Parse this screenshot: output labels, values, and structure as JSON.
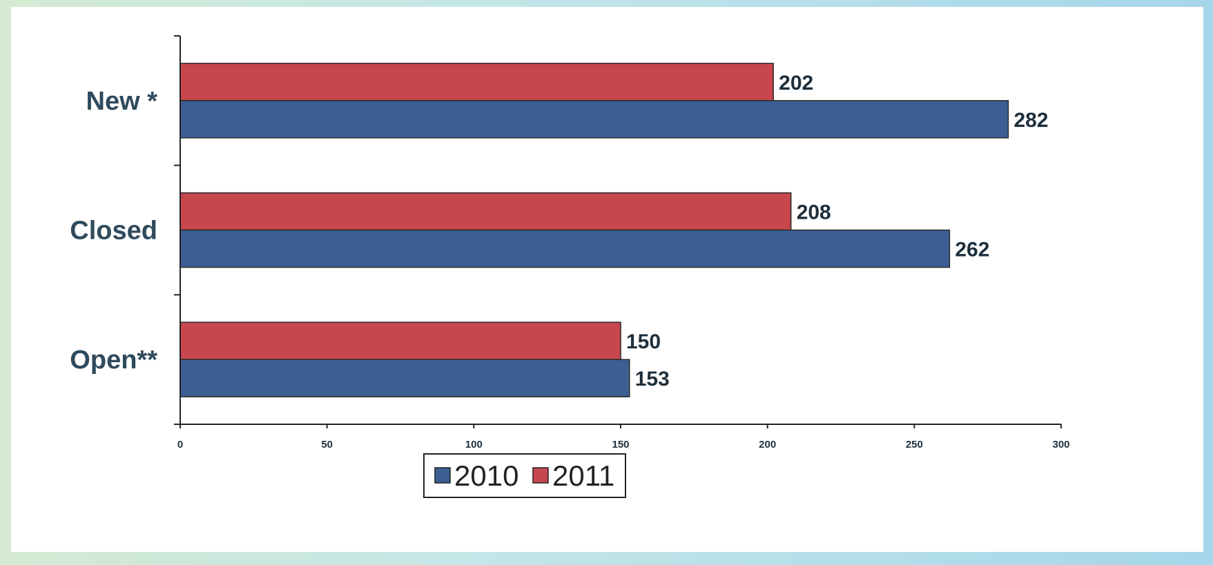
{
  "chart_data": {
    "type": "bar",
    "orientation": "horizontal",
    "categories": [
      "New *",
      "Closed",
      "Open**"
    ],
    "series": [
      {
        "name": "2011",
        "values": [
          202,
          208,
          150
        ],
        "color": "#c8464e"
      },
      {
        "name": "2010",
        "values": [
          282,
          262,
          153
        ],
        "color": "#3c5f93"
      }
    ],
    "xticks": [
      "0",
      "50",
      "100",
      "150",
      "200",
      "250",
      "300"
    ],
    "xlim": [
      0,
      300
    ],
    "grid": false,
    "legend": {
      "placement": "bottom-center",
      "entries": [
        {
          "label": "2010",
          "color": "#3c5f93"
        },
        {
          "label": "2011",
          "color": "#c8464e"
        }
      ]
    }
  }
}
